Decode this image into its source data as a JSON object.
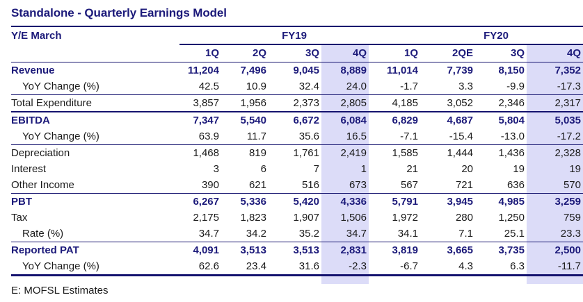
{
  "title": "Standalone - Quarterly Earnings Model",
  "header": {
    "row_label": "Y/E March",
    "fiscal_years": [
      "FY19",
      "FY20"
    ],
    "quarters": [
      "1Q",
      "2Q",
      "3Q",
      "4Q",
      "1Q",
      "2QE",
      "3Q",
      "4Q"
    ]
  },
  "highlight_color": "#dcdcf8",
  "accent_color": "#1c1a7a",
  "rows": [
    {
      "label": "Revenue",
      "values": [
        "11,204",
        "7,496",
        "9,045",
        "8,889",
        "11,014",
        "7,739",
        "8,150",
        "7,352"
      ]
    },
    {
      "label": "YoY Change (%)",
      "values": [
        "42.5",
        "10.9",
        "32.4",
        "24.0",
        "-1.7",
        "3.3",
        "-9.9",
        "-17.3"
      ]
    },
    {
      "label": "Total Expenditure",
      "values": [
        "3,857",
        "1,956",
        "2,373",
        "2,805",
        "4,185",
        "3,052",
        "2,346",
        "2,317"
      ]
    },
    {
      "label": "EBITDA",
      "values": [
        "7,347",
        "5,540",
        "6,672",
        "6,084",
        "6,829",
        "4,687",
        "5,804",
        "5,035"
      ]
    },
    {
      "label": "YoY Change (%)",
      "values": [
        "63.9",
        "11.7",
        "35.6",
        "16.5",
        "-7.1",
        "-15.4",
        "-13.0",
        "-17.2"
      ]
    },
    {
      "label": "Depreciation",
      "values": [
        "1,468",
        "819",
        "1,761",
        "2,419",
        "1,585",
        "1,444",
        "1,436",
        "2,328"
      ]
    },
    {
      "label": "Interest",
      "values": [
        "3",
        "6",
        "7",
        "1",
        "21",
        "20",
        "19",
        "19"
      ]
    },
    {
      "label": "Other Income",
      "values": [
        "390",
        "621",
        "516",
        "673",
        "567",
        "721",
        "636",
        "570"
      ]
    },
    {
      "label": "PBT",
      "values": [
        "6,267",
        "5,336",
        "5,420",
        "4,336",
        "5,791",
        "3,945",
        "4,985",
        "3,259"
      ]
    },
    {
      "label": "Tax",
      "values": [
        "2,175",
        "1,823",
        "1,907",
        "1,506",
        "1,972",
        "280",
        "1,250",
        "759"
      ]
    },
    {
      "label": "Rate (%)",
      "values": [
        "34.7",
        "34.2",
        "35.2",
        "34.7",
        "34.1",
        "7.1",
        "25.1",
        "23.3"
      ]
    },
    {
      "label": "Reported PAT",
      "values": [
        "4,091",
        "3,513",
        "3,513",
        "2,831",
        "3,819",
        "3,665",
        "3,735",
        "2,500"
      ]
    },
    {
      "label": "YoY Change (%)",
      "values": [
        "62.6",
        "23.4",
        "31.6",
        "-2.3",
        "-6.7",
        "4.3",
        "6.3",
        "-11.7"
      ]
    }
  ],
  "footnote": "E: MOFSL Estimates"
}
